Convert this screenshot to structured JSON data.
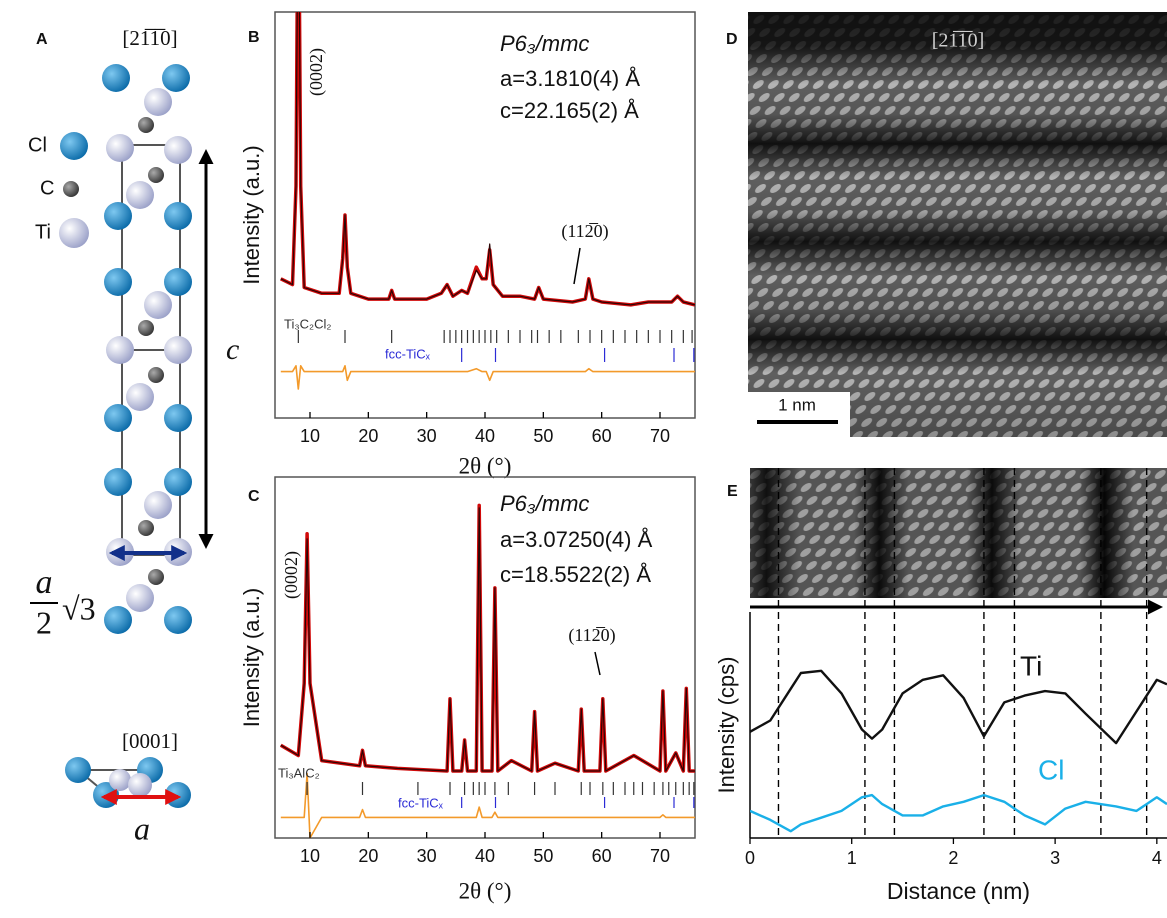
{
  "panels": {
    "A": {
      "label": "A",
      "zone_side": "[21̅1̅0]",
      "zone_top": "[0001]",
      "atoms": [
        "Cl",
        "C",
        "Ti"
      ],
      "c": "c",
      "a": "a",
      "a_frac": {
        "numerator": "a",
        "denominator": "2",
        "root": "√3"
      }
    },
    "D": {
      "label": "D",
      "zone": "[21̅1̅0]",
      "scale_bar": "1 nm"
    }
  },
  "chart_data": [
    {
      "type": "xrd",
      "panel_label": "B",
      "space_group": "P6₃/mmc",
      "lattice": [
        "a=3.1810(4) Å",
        "c=22.165(2) Å"
      ],
      "peak_labels": [
        "(0002)",
        "(112̅0)"
      ],
      "xlabel": "2θ (°)",
      "ylabel": "Intensity (a.u.)",
      "xlim": [
        4,
        76
      ],
      "ylim": [
        -40,
        100
      ],
      "xticks": [
        10,
        20,
        30,
        40,
        50,
        60,
        70
      ],
      "x": [
        5,
        7,
        7.6,
        8,
        8.4,
        9,
        12,
        15,
        15.6,
        16,
        16.4,
        17,
        20,
        23.5,
        24,
        24.5,
        30,
        32.5,
        33.5,
        34.5,
        36,
        37,
        38.5,
        39.5,
        40.2,
        40.8,
        41.4,
        43,
        46,
        48.5,
        49.2,
        50,
        55,
        57.2,
        57.8,
        58.5,
        60,
        65,
        68,
        72,
        73,
        74,
        76
      ],
      "series": [
        {
          "color": "#d10a0a",
          "values": [
            8,
            6,
            40,
            160,
            40,
            5,
            3,
            3,
            15,
            30,
            12,
            3,
            1,
            1,
            4,
            1,
            1,
            3,
            6,
            2,
            4,
            3,
            12,
            8,
            8,
            18,
            6,
            2,
            2,
            1,
            5,
            1,
            0,
            1,
            8,
            1,
            0,
            -1,
            0,
            0,
            2,
            0,
            -1
          ]
        },
        {
          "color": "#2b0505",
          "values": [
            8,
            6,
            40,
            155,
            40,
            5,
            3,
            3,
            15,
            30,
            12,
            3,
            1,
            1,
            4,
            1,
            1,
            3,
            6,
            2,
            4,
            3,
            11,
            8,
            8,
            20,
            6,
            2,
            2,
            1,
            5,
            1,
            0,
            1,
            8,
            1,
            0,
            -1,
            0,
            0,
            2,
            0,
            -1
          ]
        },
        {
          "color": "#f39a2b",
          "values": [
            -24,
            -24,
            -22,
            -30,
            -22,
            -24,
            -24,
            -24,
            -24,
            -22,
            -27,
            -24,
            -24,
            -24,
            -24,
            -24,
            -24,
            -24,
            -24,
            -24,
            -24,
            -24,
            -23,
            -24,
            -24,
            -27,
            -24,
            -24,
            -24,
            -24,
            -24,
            -24,
            -24,
            -24,
            -23,
            -24,
            -24,
            -24,
            -24,
            -24,
            -24,
            -24,
            -24
          ]
        }
      ],
      "phases": [
        {
          "name": "Ti₃C₂Cl₂",
          "color": "#333333",
          "reflections": [
            8,
            16,
            24,
            33,
            34,
            35,
            36,
            37,
            38,
            39,
            40,
            41,
            42,
            44,
            46,
            48,
            49,
            51,
            53,
            56,
            58,
            60,
            62,
            64,
            66,
            68,
            70,
            72,
            74,
            75.5
          ]
        },
        {
          "name": "fcc-TiCₓ",
          "color": "#2b2bd6",
          "reflections": [
            36,
            41.8,
            60.5,
            72.4,
            75.8
          ]
        }
      ]
    },
    {
      "type": "xrd",
      "panel_label": "C",
      "space_group": "P6₃/mmc",
      "lattice": [
        "a=3.07250(4) Å",
        "c=18.5522(2) Å"
      ],
      "peak_labels": [
        "(0002)",
        "(112̅0)"
      ],
      "xlabel": "2θ (°)",
      "ylabel": "Intensity (a.u.)",
      "xlim": [
        4,
        76
      ],
      "ylim": [
        -40,
        100
      ],
      "xticks": [
        10,
        20,
        30,
        40,
        50,
        60,
        70
      ],
      "x": [
        5,
        8,
        9,
        9.5,
        10,
        12,
        18.5,
        19,
        19.5,
        25,
        33.5,
        34,
        34.5,
        36,
        36.5,
        37,
        38.5,
        39,
        39.5,
        41.2,
        41.7,
        42.2,
        44.5,
        48,
        48.5,
        49,
        52,
        56,
        56.5,
        57,
        59.7,
        60.2,
        60.7,
        65.5,
        70,
        70.5,
        71,
        72.7,
        74,
        74.5,
        75,
        76
      ],
      "series": [
        {
          "color": "#d10a0a",
          "values": [
            -4,
            -8,
            20,
            78,
            20,
            -10,
            -12,
            -6,
            -12,
            -13,
            -14,
            14,
            -14,
            -14,
            -2,
            -14,
            -14,
            89,
            -14,
            -14,
            57,
            -14,
            -10,
            -14,
            9,
            -14,
            -11,
            -14,
            10,
            -14,
            -14,
            14,
            -14,
            -8,
            -14,
            17,
            -14,
            -7,
            -14,
            18,
            -14,
            -14
          ]
        },
        {
          "color": "#2b0505",
          "values": [
            -4,
            -8,
            20,
            76,
            20,
            -10,
            -12,
            -6,
            -12,
            -13,
            -14,
            14,
            -14,
            -14,
            -2,
            -14,
            -14,
            88,
            -14,
            -14,
            57,
            -14,
            -10,
            -14,
            9,
            -14,
            -11,
            -14,
            10,
            -14,
            -14,
            14,
            -14,
            -8,
            -14,
            17,
            -14,
            -7,
            -14,
            18,
            -14,
            -14
          ]
        },
        {
          "color": "#f39a2b",
          "values": [
            -32,
            -32,
            -32,
            -15,
            -40,
            -32,
            -32,
            -29,
            -32,
            -32,
            -32,
            -32,
            -32,
            -32,
            -32,
            -32,
            -32,
            -28,
            -32,
            -32,
            -30,
            -32,
            -32,
            -32,
            -32,
            -32,
            -32,
            -32,
            -32,
            -32,
            -32,
            -32,
            -32,
            -32,
            -32,
            -31,
            -32,
            -32,
            -32,
            -32,
            -32,
            -32
          ]
        }
      ],
      "phases": [
        {
          "name": "Ti₃AlC₂",
          "color": "#333333",
          "reflections": [
            9.5,
            19,
            28.5,
            34,
            36.5,
            38,
            39,
            40,
            41.7,
            44,
            48.5,
            52,
            56.5,
            58,
            60.2,
            62,
            64,
            65.5,
            67,
            69,
            70.5,
            71.5,
            72.7,
            74,
            75,
            75.8
          ]
        },
        {
          "name": "fcc-TiCₓ",
          "color": "#2b2bd6",
          "reflections": [
            36,
            41.8,
            60.5,
            72.4,
            75.8
          ]
        }
      ]
    },
    {
      "type": "line",
      "panel_label": "E",
      "xlabel": "Distance (nm)",
      "ylabel": "Intensity (cps)",
      "xlim": [
        0,
        4.1
      ],
      "ylim": [
        0,
        100
      ],
      "xticks": [
        0,
        1,
        2,
        3,
        4
      ],
      "dashed_lines": [
        0.28,
        1.13,
        1.42,
        2.3,
        2.6,
        3.45,
        3.9
      ],
      "x": [
        0,
        0.2,
        0.4,
        0.5,
        0.7,
        0.9,
        1.1,
        1.2,
        1.3,
        1.5,
        1.7,
        1.9,
        2.1,
        2.3,
        2.5,
        2.7,
        2.9,
        3.1,
        3.3,
        3.6,
        3.8,
        4.0,
        4.1
      ],
      "series": [
        {
          "name": "Ti",
          "color": "#111111",
          "values": [
            47,
            52,
            66,
            73,
            74,
            64,
            48,
            44,
            48,
            64,
            70,
            72,
            62,
            45,
            60,
            63,
            65,
            64,
            55,
            42,
            56,
            70,
            68
          ]
        },
        {
          "name": "Cl",
          "color": "#1ab0e8",
          "values": [
            12,
            8,
            3,
            6,
            9,
            12,
            18,
            19,
            15,
            10,
            10,
            14,
            16,
            19,
            16,
            10,
            6,
            13,
            16,
            14,
            12,
            18,
            15
          ]
        }
      ]
    }
  ]
}
